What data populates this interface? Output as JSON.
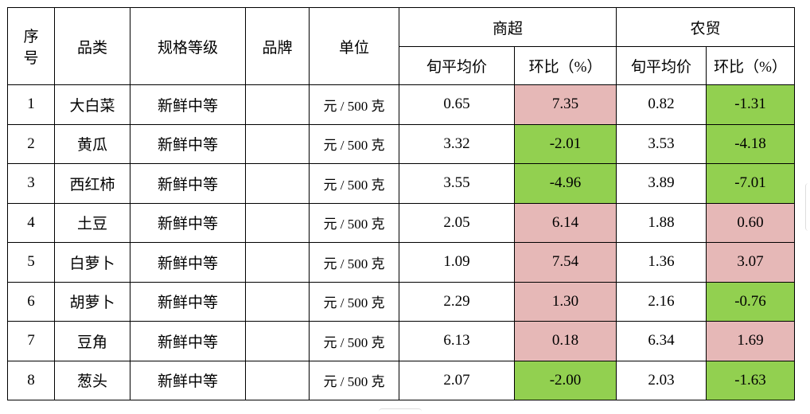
{
  "header": {
    "seq": "序号",
    "seq_line1": "序",
    "seq_line2": "号",
    "category": "品类",
    "spec": "规格等级",
    "brand": "品牌",
    "unit": "单位",
    "supermarket": "商超",
    "market": "农贸",
    "avg_price": "旬平均价",
    "mom": "环比（%）"
  },
  "colors": {
    "increase": "#e6b8b7",
    "decrease": "#92d050"
  },
  "rows": [
    {
      "seq": "1",
      "name": "大白菜",
      "spec": "新鲜中等",
      "brand": "",
      "unit": "元 / 500 克",
      "sm_price": "0.65",
      "sm_mom": "7.35",
      "sm_trend": "up",
      "mk_price": "0.82",
      "mk_mom": "-1.31",
      "mk_trend": "down"
    },
    {
      "seq": "2",
      "name": "黄瓜",
      "spec": "新鲜中等",
      "brand": "",
      "unit": "元 / 500 克",
      "sm_price": "3.32",
      "sm_mom": "-2.01",
      "sm_trend": "down",
      "mk_price": "3.53",
      "mk_mom": "-4.18",
      "mk_trend": "down"
    },
    {
      "seq": "3",
      "name": "西红柿",
      "spec": "新鲜中等",
      "brand": "",
      "unit": "元 / 500 克",
      "sm_price": "3.55",
      "sm_mom": "-4.96",
      "sm_trend": "down",
      "mk_price": "3.89",
      "mk_mom": "-7.01",
      "mk_trend": "down"
    },
    {
      "seq": "4",
      "name": "土豆",
      "spec": "新鲜中等",
      "brand": "",
      "unit": "元 / 500 克",
      "sm_price": "2.05",
      "sm_mom": "6.14",
      "sm_trend": "up",
      "mk_price": "1.88",
      "mk_mom": "0.60",
      "mk_trend": "up"
    },
    {
      "seq": "5",
      "name": "白萝卜",
      "spec": "新鲜中等",
      "brand": "",
      "unit": "元 / 500 克",
      "sm_price": "1.09",
      "sm_mom": "7.54",
      "sm_trend": "up",
      "mk_price": "1.36",
      "mk_mom": "3.07",
      "mk_trend": "up"
    },
    {
      "seq": "6",
      "name": "胡萝卜",
      "spec": "新鲜中等",
      "brand": "",
      "unit": "元 / 500 克",
      "sm_price": "2.29",
      "sm_mom": "1.30",
      "sm_trend": "up",
      "mk_price": "2.16",
      "mk_mom": "-0.76",
      "mk_trend": "down"
    },
    {
      "seq": "7",
      "name": "豆角",
      "spec": "新鲜中等",
      "brand": "",
      "unit": "元 / 500 克",
      "sm_price": "6.13",
      "sm_mom": "0.18",
      "sm_trend": "up",
      "mk_price": "6.34",
      "mk_mom": "1.69",
      "mk_trend": "up"
    },
    {
      "seq": "8",
      "name": "葱头",
      "spec": "新鲜中等",
      "brand": "",
      "unit": "元 / 500 克",
      "sm_price": "2.07",
      "sm_mom": "-2.00",
      "sm_trend": "down",
      "mk_price": "2.03",
      "mk_mom": "-1.63",
      "mk_trend": "down"
    }
  ]
}
